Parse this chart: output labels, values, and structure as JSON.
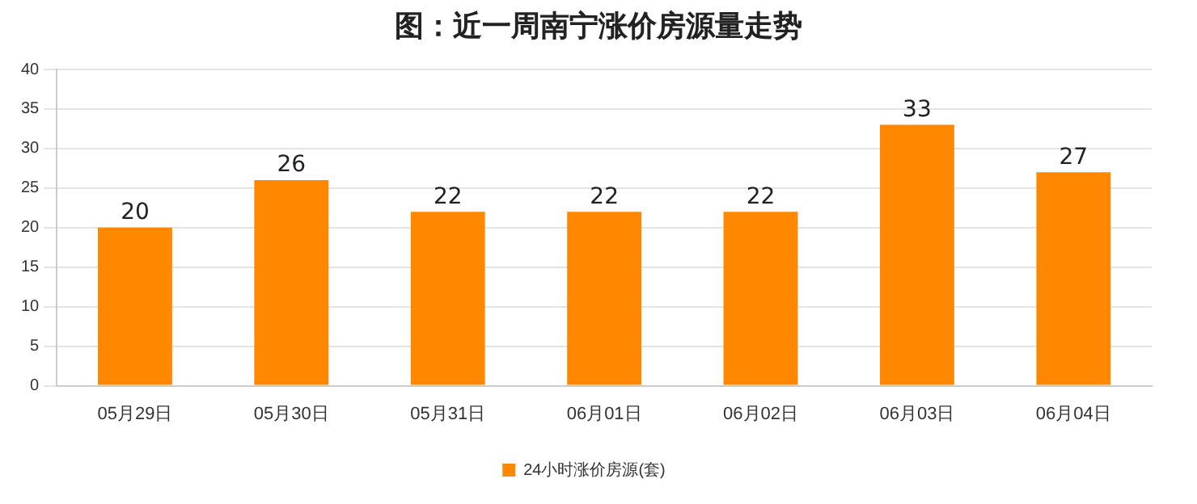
{
  "chart_data": {
    "type": "bar",
    "title": "图：近一周南宁涨价房源量走势",
    "categories": [
      "05月29日",
      "05月30日",
      "05月31日",
      "06月01日",
      "06月02日",
      "06月03日",
      "06月04日"
    ],
    "series": [
      {
        "name": "24小时涨价房源(套)",
        "color": "#ff8800",
        "values": [
          20,
          26,
          22,
          22,
          22,
          33,
          27
        ]
      }
    ],
    "ylim": [
      0,
      40
    ],
    "yticks": [
      0,
      5,
      10,
      15,
      20,
      25,
      30,
      35,
      40
    ],
    "grid": "y",
    "legend": "bottom",
    "data_labels": true
  }
}
